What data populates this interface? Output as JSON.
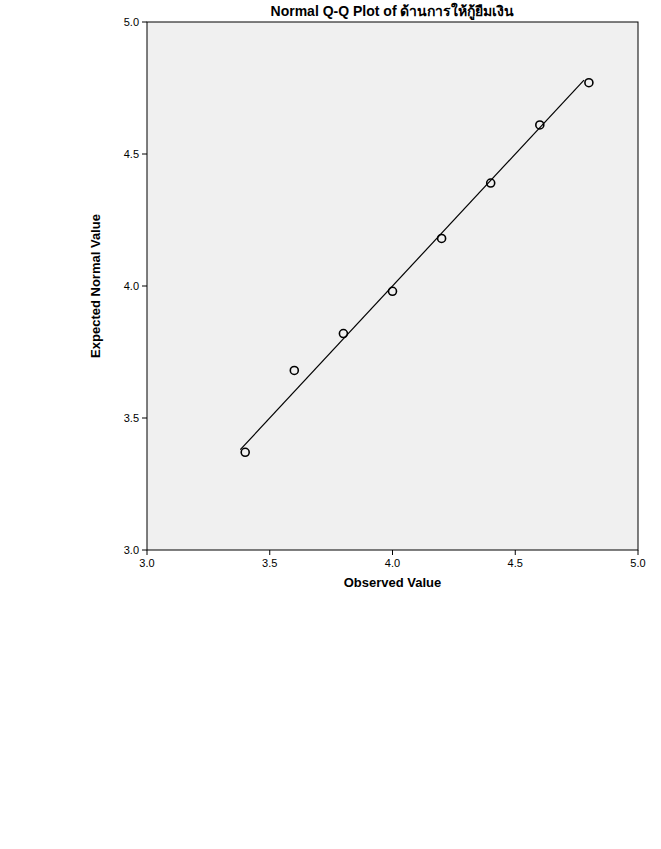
{
  "chart_data": {
    "type": "scatter",
    "title": "Normal Q-Q Plot of ด้านการให้กู้ยืมเงิน",
    "x_label": "Observed Value",
    "y_label": "Expected Normal Value",
    "xlim": [
      3.0,
      5.0
    ],
    "ylim": [
      3.0,
      5.0
    ],
    "xticks": [
      {
        "value": 3.0,
        "label": "3.0"
      },
      3.5,
      {
        "value": 4.0,
        "label": "4.0"
      },
      4.5,
      {
        "value": 5.0,
        "label": "5.0"
      }
    ],
    "yticks": [
      {
        "value": 3.0,
        "label": "3.0"
      },
      3.5,
      {
        "value": 4.0,
        "label": "4.0"
      },
      4.5,
      {
        "value": 5.0,
        "label": "5.0"
      }
    ],
    "grid": false,
    "series": [
      {
        "type": "scatter",
        "marker": "circle-open",
        "color": "#000000",
        "x": [
          3.4,
          3.6,
          3.8,
          4.0,
          4.2,
          4.4,
          4.6,
          4.8
        ],
        "values": [
          3.37,
          3.68,
          3.82,
          3.98,
          4.18,
          4.39,
          4.61,
          4.77
        ]
      },
      {
        "type": "line",
        "line_style": "solid",
        "color": "#000000",
        "x": [
          3.38,
          4.78
        ],
        "values": [
          3.38,
          4.78
        ]
      }
    ]
  }
}
